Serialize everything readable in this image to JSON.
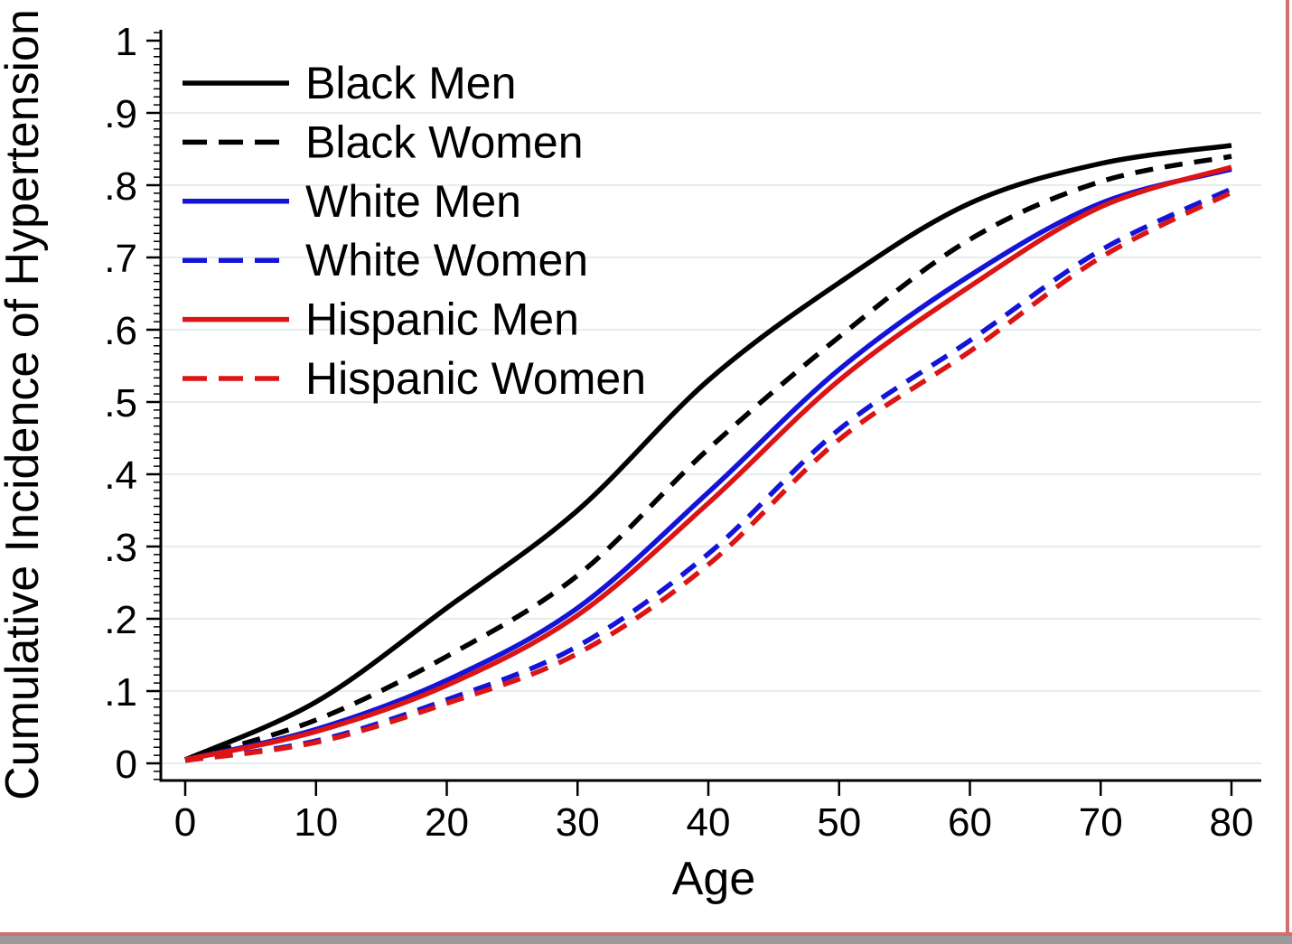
{
  "chart_data": {
    "type": "line",
    "title": "",
    "xlabel": "Age",
    "ylabel": "Cumulative Incidence of Hypertension",
    "xlim": [
      0,
      80
    ],
    "ylim": [
      0,
      1
    ],
    "grid": "horizontal",
    "legend_position": "top-left-inside",
    "x_ticks": [
      0,
      10,
      20,
      30,
      40,
      50,
      60,
      70,
      80
    ],
    "x_tick_labels": [
      "0",
      "10",
      "20",
      "30",
      "40",
      "50",
      "60",
      "70",
      "80"
    ],
    "y_ticks": [
      0,
      0.1,
      0.2,
      0.3,
      0.4,
      0.5,
      0.6,
      0.7,
      0.8,
      0.9,
      1
    ],
    "y_tick_labels": [
      "0",
      ".1",
      ".2",
      ".3",
      ".4",
      ".5",
      ".6",
      ".7",
      ".8",
      ".9",
      "1"
    ],
    "x": [
      0,
      10,
      20,
      30,
      40,
      50,
      60,
      70,
      80
    ],
    "series": [
      {
        "name": "Black Men",
        "color": "#000000",
        "style": "solid",
        "values": [
          0.005,
          0.085,
          0.215,
          0.35,
          0.53,
          0.665,
          0.775,
          0.83,
          0.855
        ]
      },
      {
        "name": "Black Women",
        "color": "#000000",
        "style": "dashed",
        "values": [
          0.005,
          0.06,
          0.148,
          0.26,
          0.435,
          0.59,
          0.725,
          0.805,
          0.84
        ]
      },
      {
        "name": "White Men",
        "color": "#1414d8",
        "style": "solid",
        "values": [
          0.005,
          0.047,
          0.115,
          0.215,
          0.375,
          0.545,
          0.675,
          0.775,
          0.822
        ]
      },
      {
        "name": "White Women",
        "color": "#1414d8",
        "style": "dashed",
        "values": [
          0.004,
          0.031,
          0.088,
          0.162,
          0.29,
          0.462,
          0.585,
          0.71,
          0.795
        ]
      },
      {
        "name": "Hispanic Men",
        "color": "#dc1414",
        "style": "solid",
        "values": [
          0.005,
          0.044,
          0.108,
          0.205,
          0.36,
          0.53,
          0.66,
          0.77,
          0.825
        ]
      },
      {
        "name": "Hispanic Women",
        "color": "#dc1414",
        "style": "dashed",
        "values": [
          0.004,
          0.029,
          0.083,
          0.152,
          0.275,
          0.448,
          0.57,
          0.7,
          0.79
        ]
      }
    ]
  },
  "colors": {
    "axis": "#000000",
    "text": "#000000",
    "gridline": "#e4eef0",
    "background": "#ffffff",
    "series_black": "#000000",
    "series_blue": "#1414d8",
    "series_red": "#dc1414",
    "window_border_pink": "#cf6f6f",
    "window_border_gray": "#9a9a9a"
  }
}
